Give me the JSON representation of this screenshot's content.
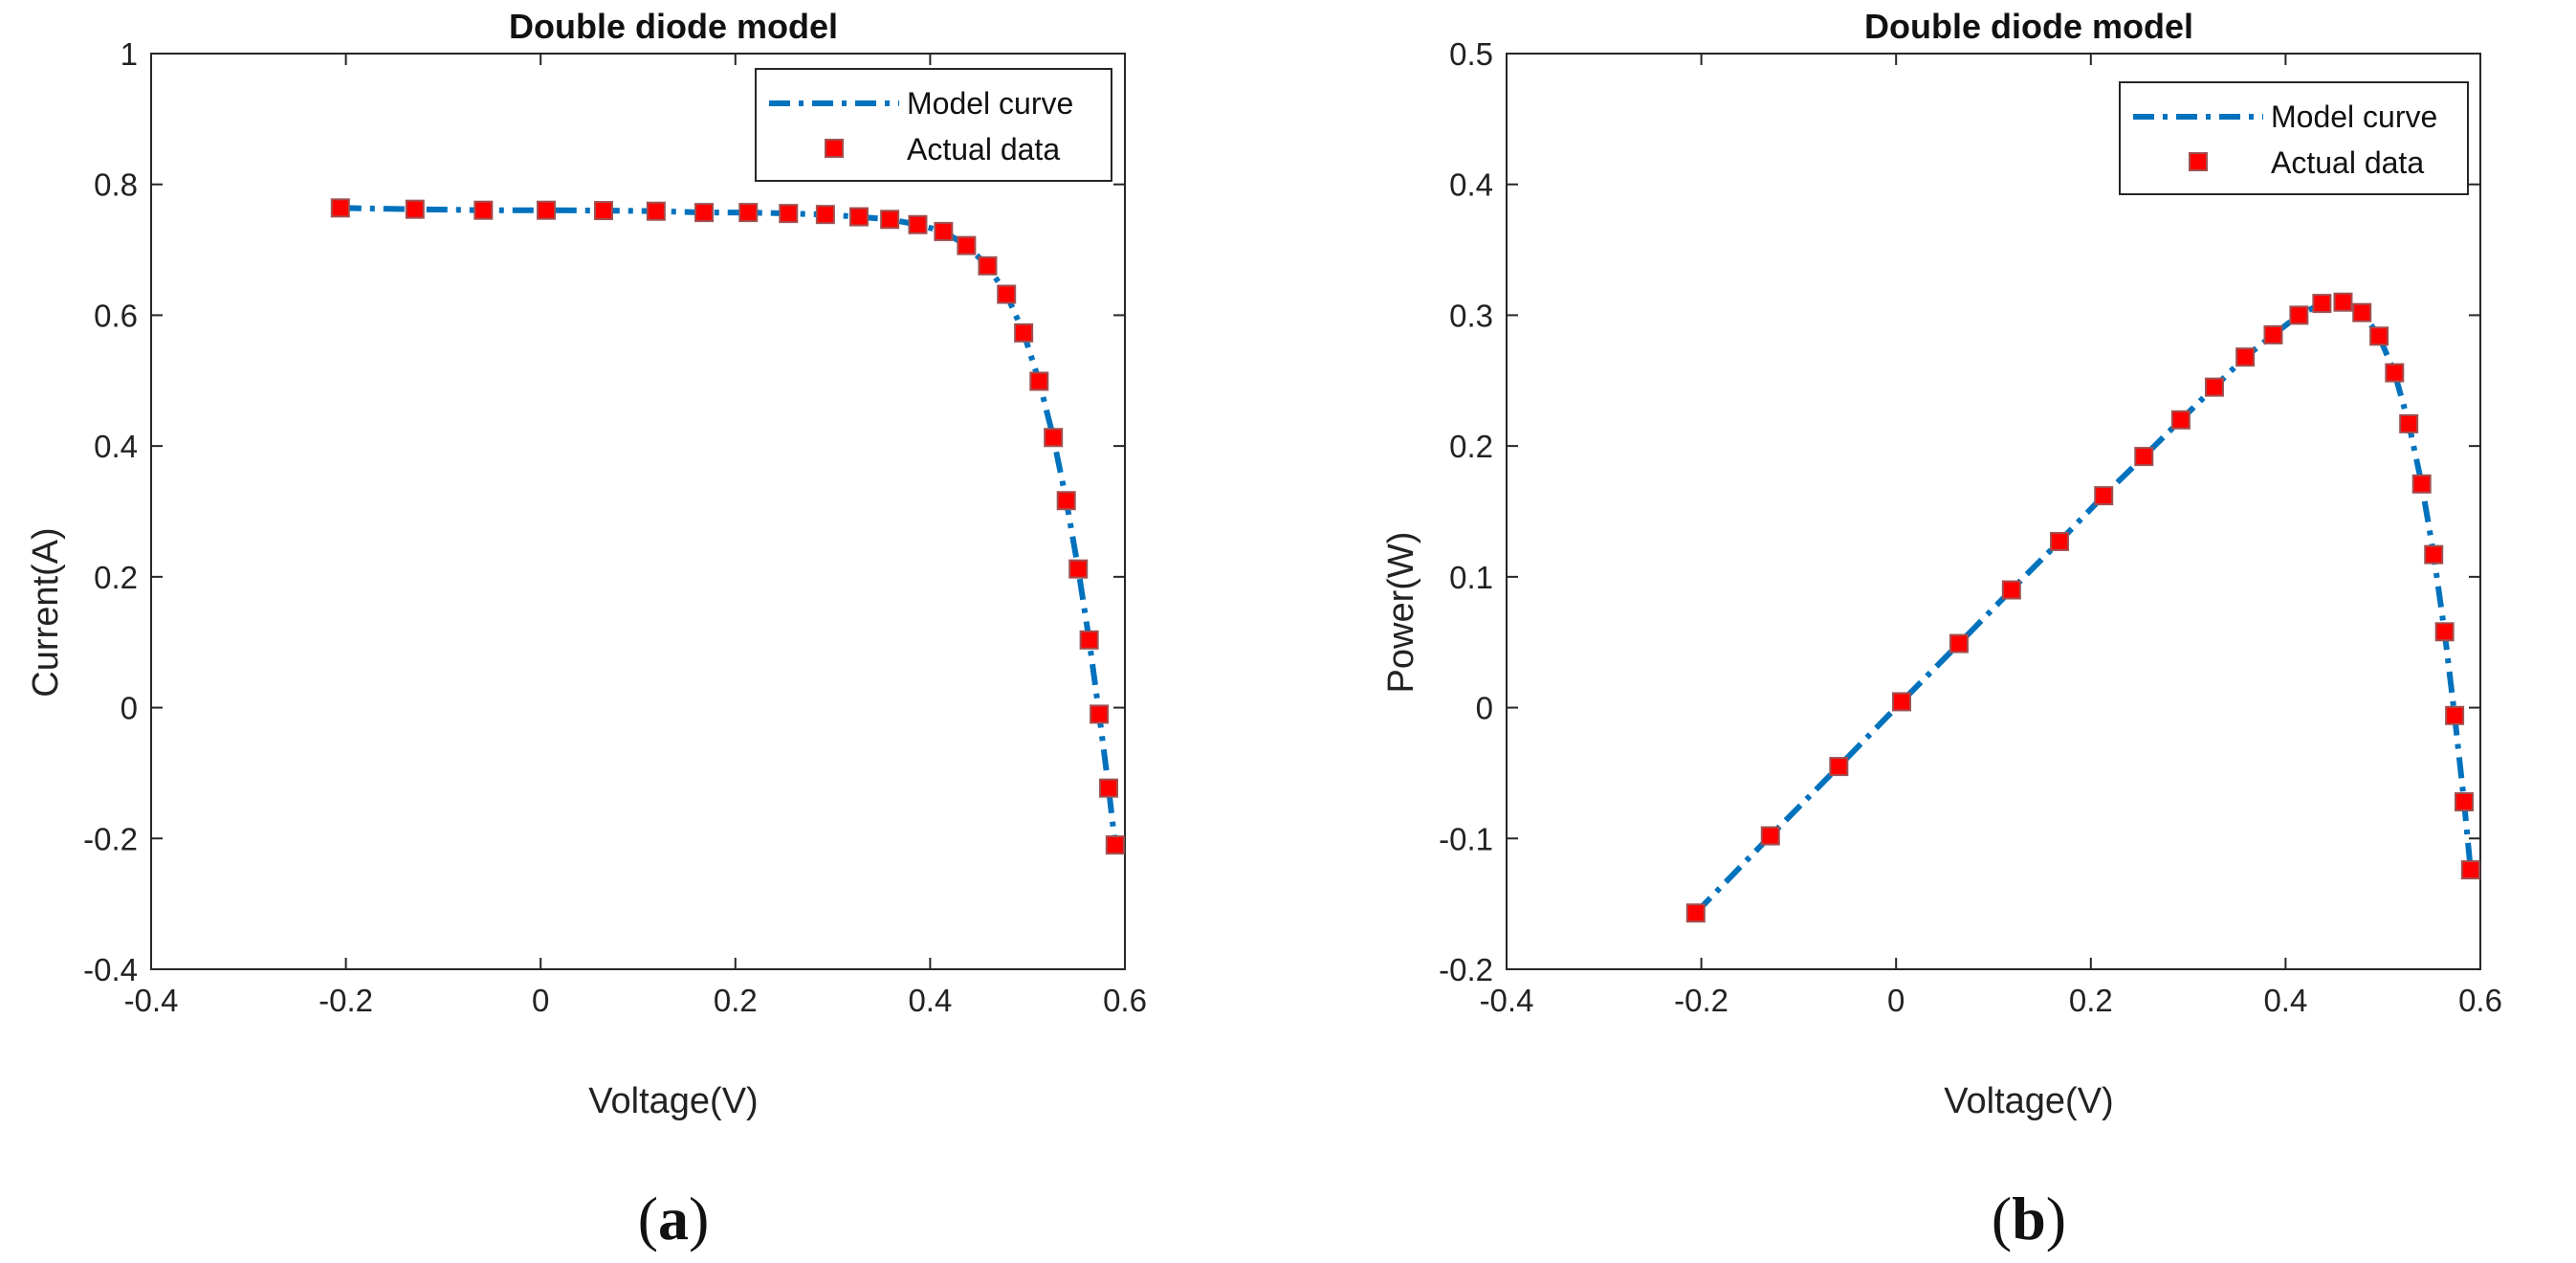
{
  "chart_data": [
    {
      "type": "line",
      "panel": "(a)",
      "panel_letter": "a",
      "title": "Double diode model",
      "xlabel": "Voltage(V)",
      "ylabel": "Current(A)",
      "xlim": [
        -0.4,
        0.6
      ],
      "ylim": [
        -0.4,
        1.0
      ],
      "xticks": [
        -0.4,
        -0.2,
        0,
        0.2,
        0.4,
        0.6
      ],
      "yticks": [
        -0.4,
        -0.2,
        0,
        0.2,
        0.4,
        0.6,
        0.8,
        1
      ],
      "xtick_labels": [
        "-0.4",
        "-0.2",
        "0",
        "0.2",
        "0.4",
        "0.6"
      ],
      "ytick_labels": [
        "-0.4",
        "-0.2",
        "0",
        "0.2",
        "0.4",
        "0.6",
        "0.8",
        "1"
      ],
      "legend": {
        "position": "top-right",
        "entries": [
          "Model curve",
          "Actual data"
        ]
      },
      "colors": {
        "model": "#0072BD",
        "data_fill": "#FF0000",
        "data_edge": "#A05050"
      },
      "series": [
        {
          "name": "Model curve",
          "style": "dash-dot",
          "x": [
            -0.2057,
            -0.1291,
            -0.0588,
            0.0057,
            0.0646,
            0.1185,
            0.1678,
            0.2132,
            0.2545,
            0.2924,
            0.3269,
            0.3585,
            0.3873,
            0.4137,
            0.4373,
            0.459,
            0.4784,
            0.496,
            0.5119,
            0.5265,
            0.5398,
            0.5521,
            0.5633,
            0.5736,
            0.5833,
            0.59
          ],
          "y": [
            0.764,
            0.762,
            0.7605,
            0.7605,
            0.76,
            0.759,
            0.757,
            0.757,
            0.7555,
            0.754,
            0.7505,
            0.7465,
            0.7385,
            0.728,
            0.7065,
            0.6755,
            0.632,
            0.573,
            0.499,
            0.413,
            0.3165,
            0.212,
            0.1035,
            -0.01,
            -0.123,
            -0.21
          ]
        },
        {
          "name": "Actual data",
          "style": "square-markers",
          "x": [
            -0.2057,
            -0.1291,
            -0.0588,
            0.0057,
            0.0646,
            0.1185,
            0.1678,
            0.2132,
            0.2545,
            0.2924,
            0.3269,
            0.3585,
            0.3873,
            0.4137,
            0.4373,
            0.459,
            0.4784,
            0.496,
            0.5119,
            0.5265,
            0.5398,
            0.5521,
            0.5633,
            0.5736,
            0.5833,
            0.59
          ],
          "y": [
            0.764,
            0.762,
            0.7605,
            0.7605,
            0.76,
            0.759,
            0.757,
            0.757,
            0.7555,
            0.754,
            0.7505,
            0.7465,
            0.7385,
            0.728,
            0.7065,
            0.6755,
            0.632,
            0.573,
            0.499,
            0.413,
            0.3165,
            0.212,
            0.1035,
            -0.01,
            -0.123,
            -0.21
          ]
        }
      ]
    },
    {
      "type": "line",
      "panel": "(b)",
      "panel_letter": "b",
      "title": "Double diode model",
      "xlabel": "Voltage(V)",
      "ylabel": "Power(W)",
      "xlim": [
        -0.4,
        0.6
      ],
      "ylim": [
        -0.2,
        0.5
      ],
      "xticks": [
        -0.4,
        -0.2,
        0,
        0.2,
        0.4,
        0.6
      ],
      "yticks": [
        -0.2,
        -0.1,
        0,
        0.1,
        0.2,
        0.3,
        0.4,
        0.5
      ],
      "xtick_labels": [
        "-0.4",
        "-0.2",
        "0",
        "0.2",
        "0.4",
        "0.6"
      ],
      "ytick_labels": [
        "-0.2",
        "-0.1",
        "0",
        "0.1",
        "0.2",
        "0.3",
        "0.4",
        "0.5"
      ],
      "legend": {
        "position": "top-right",
        "entries": [
          "Model curve",
          "Actual data"
        ]
      },
      "colors": {
        "model": "#0072BD",
        "data_fill": "#FF0000",
        "data_edge": "#A05050"
      },
      "series": [
        {
          "name": "Model curve",
          "style": "dash-dot",
          "x": [
            -0.2057,
            -0.1291,
            -0.0588,
            0.0057,
            0.0646,
            0.1185,
            0.1678,
            0.2132,
            0.2545,
            0.2924,
            0.3269,
            0.3585,
            0.3873,
            0.4137,
            0.4373,
            0.459,
            0.4784,
            0.496,
            0.5119,
            0.5265,
            0.5398,
            0.5521,
            0.5633,
            0.5736,
            0.5833,
            0.59
          ],
          "y": [
            -0.157,
            -0.098,
            -0.045,
            0.0045,
            0.049,
            0.09,
            0.127,
            0.162,
            0.192,
            0.22,
            0.245,
            0.268,
            0.285,
            0.3,
            0.309,
            0.31,
            0.302,
            0.284,
            0.256,
            0.217,
            0.171,
            0.117,
            0.058,
            -0.006,
            -0.072,
            -0.124
          ]
        },
        {
          "name": "Actual data",
          "style": "square-markers",
          "x": [
            -0.2057,
            -0.1291,
            -0.0588,
            0.0057,
            0.0646,
            0.1185,
            0.1678,
            0.2132,
            0.2545,
            0.2924,
            0.3269,
            0.3585,
            0.3873,
            0.4137,
            0.4373,
            0.459,
            0.4784,
            0.496,
            0.5119,
            0.5265,
            0.5398,
            0.5521,
            0.5633,
            0.5736,
            0.5833,
            0.59
          ],
          "y": [
            -0.157,
            -0.098,
            -0.045,
            0.0045,
            0.049,
            0.09,
            0.127,
            0.162,
            0.192,
            0.22,
            0.245,
            0.268,
            0.285,
            0.3,
            0.309,
            0.31,
            0.302,
            0.284,
            0.256,
            0.217,
            0.171,
            0.117,
            0.058,
            -0.006,
            -0.072,
            -0.124
          ]
        }
      ]
    }
  ]
}
